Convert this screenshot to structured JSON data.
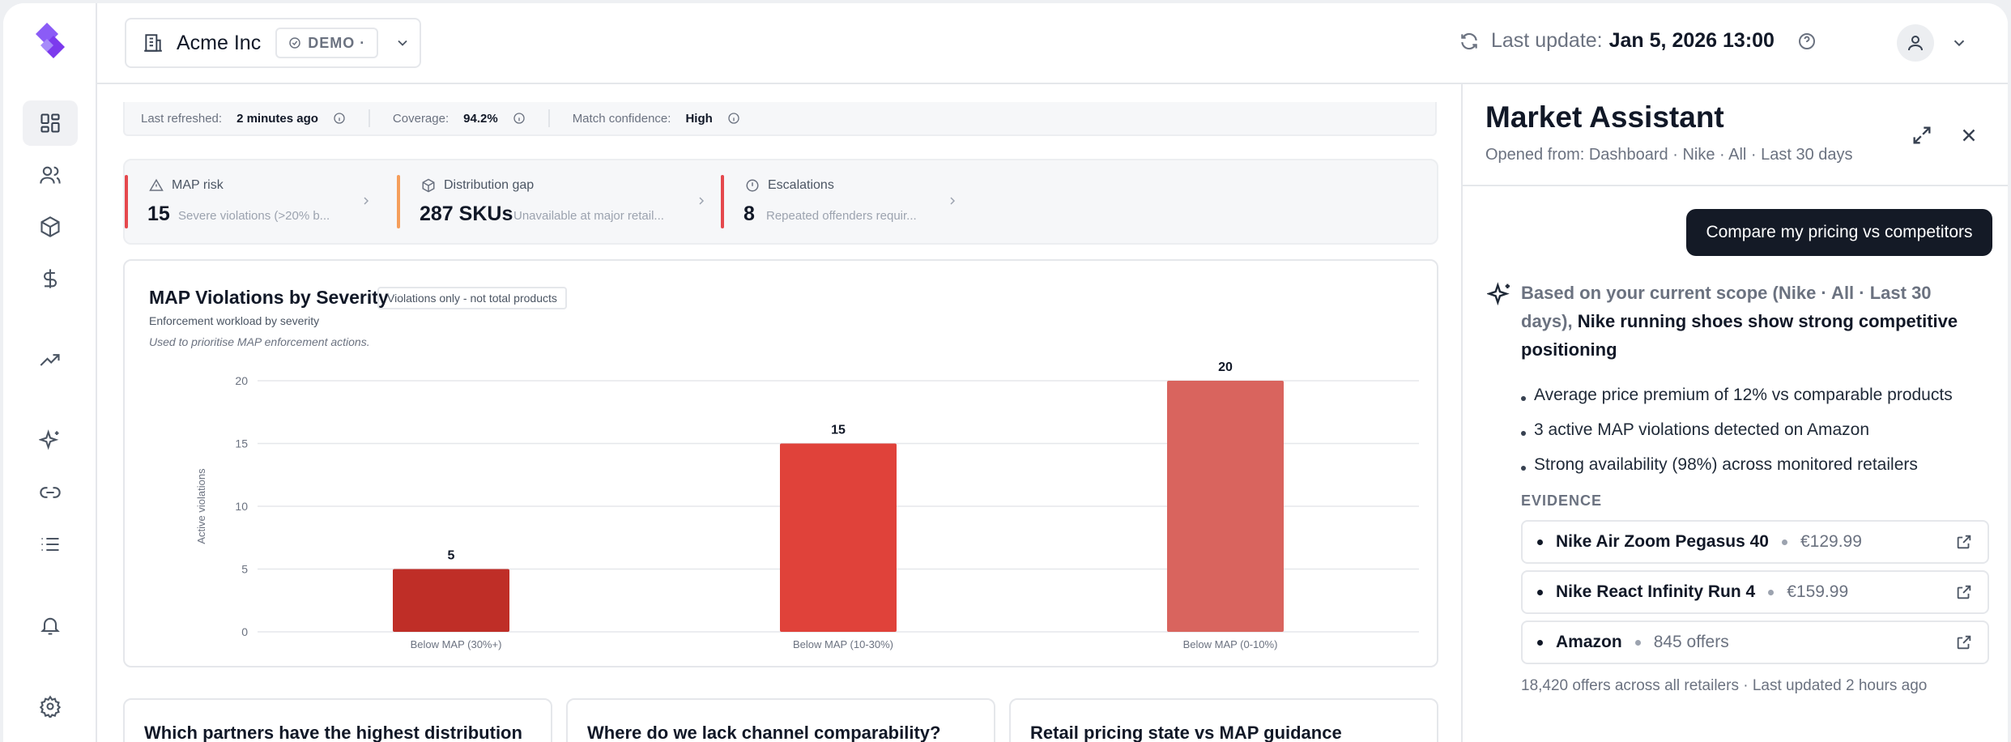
{
  "header": {
    "org_name": "Acme Inc",
    "demo_label": "DEMO ·",
    "last_update_label": "Last update:",
    "last_update_value": "Jan 5, 2026 13:00"
  },
  "refresh_bar": {
    "refreshed_label": "Last refreshed:",
    "refreshed_value": "2 minutes ago",
    "coverage_label": "Coverage:",
    "coverage_value": "94.2%",
    "confidence_label": "Match confidence:",
    "confidence_value": "High"
  },
  "kpis": [
    {
      "label": "MAP risk",
      "value": "15",
      "desc": "Severe violations (>20% b...",
      "color": "#e5484d"
    },
    {
      "label": "Distribution gap",
      "value": "287 SKUs",
      "desc": "Unavailable at major retail...",
      "color": "#f59e5b"
    },
    {
      "label": "Escalations",
      "value": "8",
      "desc": "Repeated offenders requir...",
      "color": "#e5484d"
    }
  ],
  "chart_card": {
    "title": "MAP Violations by Severity",
    "tag": "Violations only - not total products",
    "subtitle": "Enforcement workload by severity",
    "note": "Used to prioritise MAP enforcement actions."
  },
  "chart_data": {
    "type": "bar",
    "title": "MAP Violations by Severity",
    "xlabel": "",
    "ylabel": "Active violations",
    "categories": [
      "Below MAP (30%+)",
      "Below MAP (10-30%)",
      "Below MAP (0-10%)"
    ],
    "values": [
      5,
      15,
      20
    ],
    "colors": [
      "#bf2e27",
      "#e0423a",
      "#d9645e"
    ],
    "ylim": [
      0,
      20
    ],
    "yticks": [
      0,
      5,
      10,
      15,
      20
    ],
    "grid": true
  },
  "bottom_cards": [
    "Which partners have the highest distribution",
    "Where do we lack channel comparability?",
    "Retail pricing state vs MAP guidance"
  ],
  "assistant": {
    "title": "Market Assistant",
    "subtitle": "Opened from: Dashboard · Nike · All · Last 30 days",
    "user_message": "Compare my pricing vs competitors",
    "answer_scope": "Based on your current scope (Nike · All · Last 30 days),",
    "answer_headline": "Nike running shoes show strong competitive positioning",
    "bullets": [
      "Average price premium of 12% vs comparable products",
      "3 active MAP violations detected on Amazon",
      "Strong availability (98%) across monitored retailers"
    ],
    "evidence_label": "EVIDENCE",
    "evidence": [
      {
        "name": "Nike Air Zoom Pegasus 40",
        "detail": "€129.99"
      },
      {
        "name": "Nike React Infinity Run 4",
        "detail": "€159.99"
      },
      {
        "name": "Amazon",
        "detail": "845 offers"
      }
    ],
    "footer": "18,420 offers across all retailers · Last updated 2 hours ago"
  }
}
